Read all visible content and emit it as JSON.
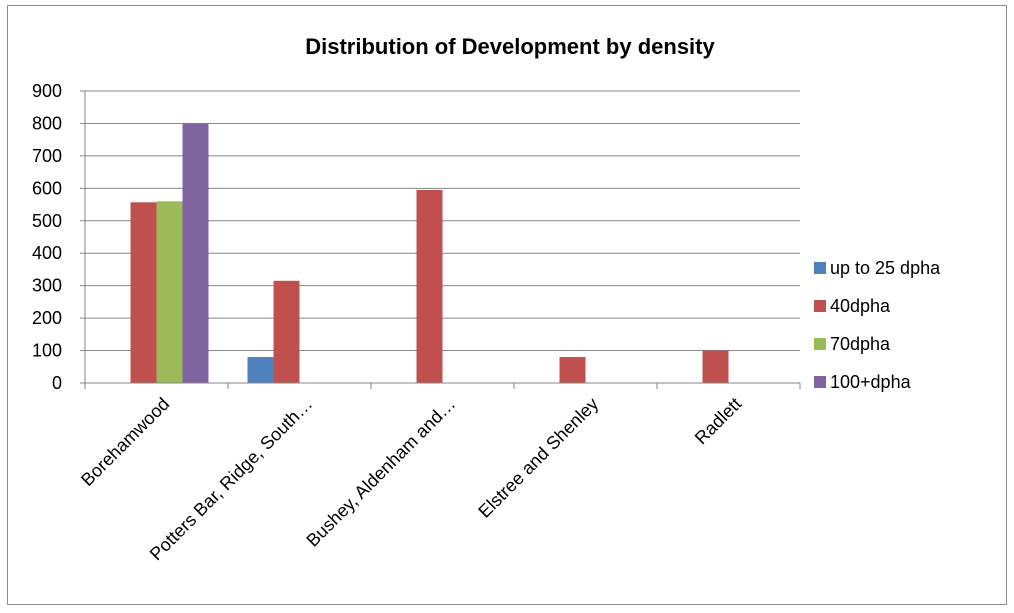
{
  "chart_data": {
    "type": "bar",
    "title": "Distribution of Development by density",
    "xlabel": "",
    "ylabel": "",
    "ylim": [
      0,
      900
    ],
    "yticks": [
      0,
      100,
      200,
      300,
      400,
      500,
      600,
      700,
      800,
      900
    ],
    "grid": true,
    "legend_position": "right",
    "categories": [
      "Borehamwood",
      "Potters Bar, Ridge, South…",
      "Bushey, Aldenham and…",
      "Elstree and Shenley",
      "Radlett"
    ],
    "series": [
      {
        "name": "up to 25 dpha",
        "color": "#4f81bd",
        "values": [
          0,
          80,
          0,
          0,
          0
        ]
      },
      {
        "name": "40dpha",
        "color": "#c0504d",
        "values": [
          557,
          315,
          595,
          80,
          100
        ]
      },
      {
        "name": "70dpha",
        "color": "#9bbb59",
        "values": [
          560,
          0,
          0,
          0,
          0
        ]
      },
      {
        "name": "100+dpha",
        "color": "#8064a2",
        "values": [
          800,
          0,
          0,
          0,
          0
        ]
      }
    ]
  }
}
